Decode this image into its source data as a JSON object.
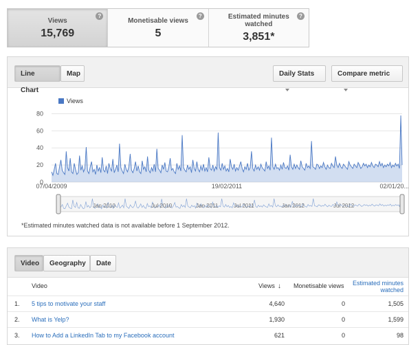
{
  "metrics": [
    {
      "label": "Views",
      "value": "15,769",
      "help": "?"
    },
    {
      "label": "Monetisable views",
      "value": "5",
      "help": "?"
    },
    {
      "label": "Estimated minutes watched",
      "value": "3,851*",
      "help": "?"
    }
  ],
  "chart_panel": {
    "tabs": [
      "Line Chart",
      "Map"
    ],
    "daily_stats_label": "Daily Stats",
    "compare_label": "Compare metric",
    "note": "*Estimated minutes watched data is not available before 1 September 2012."
  },
  "chart_data": {
    "type": "line",
    "legend": [
      "Views"
    ],
    "series": [
      {
        "name": "Views",
        "color": "#4a78c4",
        "values": [
          12,
          8,
          15,
          22,
          10,
          9,
          18,
          26,
          14,
          11,
          9,
          36,
          17,
          13,
          28,
          12,
          10,
          22,
          15,
          9,
          11,
          31,
          14,
          19,
          12,
          16,
          41,
          13,
          10,
          18,
          24,
          12,
          15,
          9,
          20,
          13,
          17,
          11,
          29,
          14,
          12,
          19,
          10,
          22,
          16,
          13,
          27,
          11,
          15,
          20,
          12,
          45,
          17,
          13,
          10,
          21,
          15,
          12,
          18,
          33,
          14,
          11,
          16,
          24,
          13,
          19,
          12,
          10,
          25,
          15,
          18,
          12,
          30,
          14,
          11,
          17,
          13,
          21,
          12,
          39,
          16,
          14,
          11,
          20,
          15,
          23,
          13,
          12,
          18,
          28,
          14,
          16,
          12,
          10,
          22,
          15,
          19,
          13,
          55,
          17,
          14,
          12,
          20,
          15,
          18,
          11,
          26,
          16,
          13,
          24,
          15,
          12,
          19,
          14,
          21,
          13,
          17,
          12,
          29,
          16,
          14,
          20,
          13,
          18,
          15,
          58,
          17,
          14,
          22,
          15,
          19,
          13,
          16,
          12,
          27,
          18,
          15,
          21,
          13,
          17,
          14,
          19,
          24,
          16,
          12,
          18,
          15,
          22,
          14,
          17,
          36,
          16,
          13,
          20,
          15,
          18,
          14,
          21,
          17,
          15,
          13,
          24,
          16,
          19,
          14,
          52,
          18,
          15,
          21,
          16,
          17,
          14,
          20,
          15,
          23,
          17,
          16,
          19,
          14,
          32,
          18,
          15,
          21,
          16,
          20,
          17,
          15,
          25,
          18,
          16,
          14,
          22,
          17,
          19,
          16,
          48,
          18,
          17,
          15,
          21,
          20,
          16,
          19,
          17,
          23,
          18,
          15,
          20,
          17,
          16,
          22,
          19,
          17,
          30,
          20,
          17,
          22,
          18,
          16,
          21,
          19,
          17,
          15,
          24,
          20,
          18,
          16,
          21,
          19,
          17,
          23,
          20,
          16,
          18,
          22,
          19,
          21,
          17,
          20,
          18,
          23,
          19,
          17,
          21,
          20,
          18,
          24,
          19,
          22,
          17,
          20,
          18,
          21,
          19,
          23,
          17,
          20,
          18,
          22,
          19,
          21,
          16,
          78,
          20
        ]
      }
    ],
    "x_ticks": [
      "07/04/2009",
      "19/02/2011",
      "02/01/20..."
    ],
    "y_ticks": [
      0,
      20,
      40,
      60,
      80
    ],
    "ylim": [
      0,
      82
    ],
    "navigator_labels": [
      "Jan 2010",
      "Jul 2010",
      "Jan 2011",
      "Jul 2011",
      "Jan 2012",
      "Jul 2012"
    ]
  },
  "table_panel": {
    "tabs": [
      "Video",
      "Geography",
      "Date"
    ],
    "headers": {
      "video": "Video",
      "views": "Views",
      "monetisable": "Monetisable views",
      "minutes": "Estimated minutes watched"
    },
    "rows": [
      {
        "num": "1.",
        "title": "5 tips to motivate your staff",
        "views": "4,640",
        "monetisable": "0",
        "minutes": "1,505"
      },
      {
        "num": "2.",
        "title": "What is Yelp?",
        "views": "1,930",
        "monetisable": "0",
        "minutes": "1,599"
      },
      {
        "num": "3.",
        "title": "How to Add a LinkedIn Tab to my Facebook account",
        "views": "621",
        "monetisable": "0",
        "minutes": "98"
      }
    ]
  }
}
